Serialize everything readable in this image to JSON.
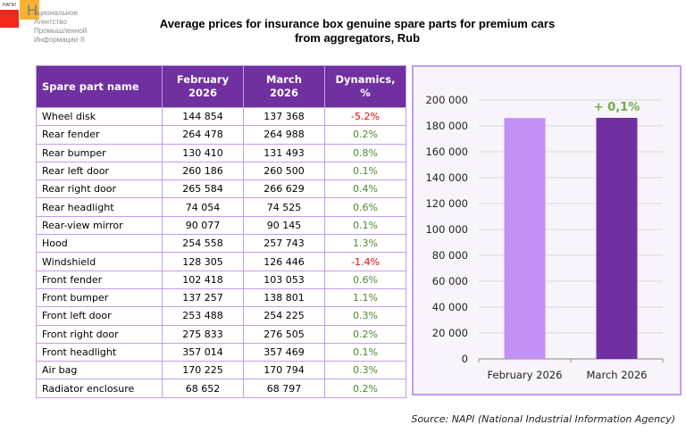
{
  "logo": {
    "abbr": "НАПИ",
    "big_letter": "Н",
    "lines": [
      "ациональное",
      "Агентство",
      "Промышленной",
      "Информации ®"
    ]
  },
  "title": {
    "line1": "Average prices for insurance box genuine spare parts for premium cars",
    "line2": "from aggregators, Rub"
  },
  "table": {
    "headers": {
      "name": "Spare part name",
      "feb": [
        "February",
        "2026"
      ],
      "mar": [
        "March",
        "2026"
      ],
      "dyn": [
        "Dynamics,",
        "%"
      ]
    },
    "rows": [
      {
        "name": "Wheel disk",
        "feb": "144 854",
        "mar": "137 368",
        "dyn": "-5.2%",
        "sign": "neg"
      },
      {
        "name": "Rear fender",
        "feb": "264 478",
        "mar": "264 988",
        "dyn": "0.2%",
        "sign": "pos"
      },
      {
        "name": "Rear bumper",
        "feb": "130 410",
        "mar": "131 493",
        "dyn": "0.8%",
        "sign": "pos"
      },
      {
        "name": "Rear left door",
        "feb": "260 186",
        "mar": "260 500",
        "dyn": "0.1%",
        "sign": "pos"
      },
      {
        "name": "Rear right door",
        "feb": "265 584",
        "mar": "266 629",
        "dyn": "0.4%",
        "sign": "pos"
      },
      {
        "name": "Rear headlight",
        "feb": "74 054",
        "mar": "74 525",
        "dyn": "0.6%",
        "sign": "pos"
      },
      {
        "name": "Rear-view mirror",
        "feb": "90 077",
        "mar": "90 145",
        "dyn": "0.1%",
        "sign": "pos"
      },
      {
        "name": "Hood",
        "feb": "254 558",
        "mar": "257 743",
        "dyn": "1.3%",
        "sign": "pos"
      },
      {
        "name": "Windshield",
        "feb": "128 305",
        "mar": "126 446",
        "dyn": "-1.4%",
        "sign": "neg"
      },
      {
        "name": "Front fender",
        "feb": "102 418",
        "mar": "103 053",
        "dyn": "0.6%",
        "sign": "pos"
      },
      {
        "name": "Front bumper",
        "feb": "137 257",
        "mar": "138 801",
        "dyn": "1.1%",
        "sign": "pos"
      },
      {
        "name": "Front left door",
        "feb": "253 488",
        "mar": "254 225",
        "dyn": "0.3%",
        "sign": "pos"
      },
      {
        "name": "Front right door",
        "feb": "275 833",
        "mar": "276 505",
        "dyn": "0.2%",
        "sign": "pos"
      },
      {
        "name": "Front headlight",
        "feb": "357 014",
        "mar": "357 469",
        "dyn": "0.1%",
        "sign": "pos"
      },
      {
        "name": "Air bag",
        "feb": "170 225",
        "mar": "170 794",
        "dyn": "0.3%",
        "sign": "pos"
      },
      {
        "name": "Radiator enclosure",
        "feb": "68 652",
        "mar": "68 797",
        "dyn": "0.2%",
        "sign": "pos"
      }
    ]
  },
  "colors": {
    "header_bg": "#7030a0",
    "border": "#c39cf0",
    "positive": "#4e8a32",
    "negative": "#ff0000",
    "bar_feb": "#c391f5",
    "bar_mar": "#7030a0",
    "annotation": "#70ad47"
  },
  "chart_data": {
    "type": "bar",
    "title": "",
    "categories": [
      "February 2026",
      "March 2026"
    ],
    "values": [
      186087,
      186218
    ],
    "xlabel": "",
    "ylabel": "",
    "ylim": [
      0,
      200000
    ],
    "yticks": [
      0,
      20000,
      40000,
      60000,
      80000,
      100000,
      120000,
      140000,
      160000,
      180000,
      200000
    ],
    "ytick_labels": [
      "0",
      "20 000",
      "40 000",
      "60 000",
      "80 000",
      "100 000",
      "120 000",
      "140 000",
      "160 000",
      "180 000",
      "200 000"
    ],
    "grid": true,
    "legend": "none",
    "annotations": [
      {
        "category": "March 2026",
        "text": "+ 0,1%"
      }
    ]
  },
  "source": "Source: NAPI (National Industrial Information Agency)"
}
